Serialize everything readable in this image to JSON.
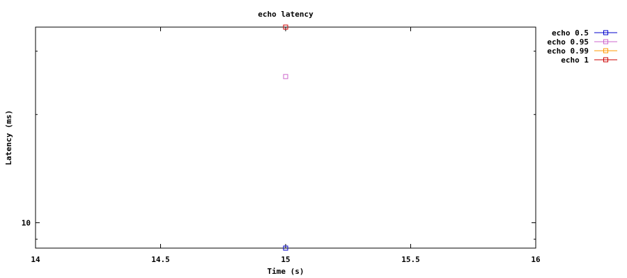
{
  "chart_data": {
    "type": "scatter",
    "title": "echo latency",
    "xlabel": "Time (s)",
    "ylabel": "Latency (ms)",
    "xlim": [
      14,
      16
    ],
    "xticks": [
      "14",
      "14.5",
      "15",
      "15.5",
      "16"
    ],
    "yscale": "log",
    "ylim": [
      8.5,
      35
    ],
    "yticks_labeled": [
      "10"
    ],
    "grid": false,
    "legend_position": "top-right outside",
    "series": [
      {
        "name": "echo 0.5",
        "color": "#0000cc",
        "points": [
          [
            15,
            8.5
          ]
        ]
      },
      {
        "name": "echo 0.95",
        "color": "#cc66cc",
        "points": [
          [
            15,
            25.5
          ]
        ]
      },
      {
        "name": "echo 0.99",
        "color": "#ff9900",
        "points": [
          [
            15,
            35
          ]
        ]
      },
      {
        "name": "echo 1",
        "color": "#cc0000",
        "points": [
          [
            15,
            35
          ]
        ]
      }
    ]
  }
}
